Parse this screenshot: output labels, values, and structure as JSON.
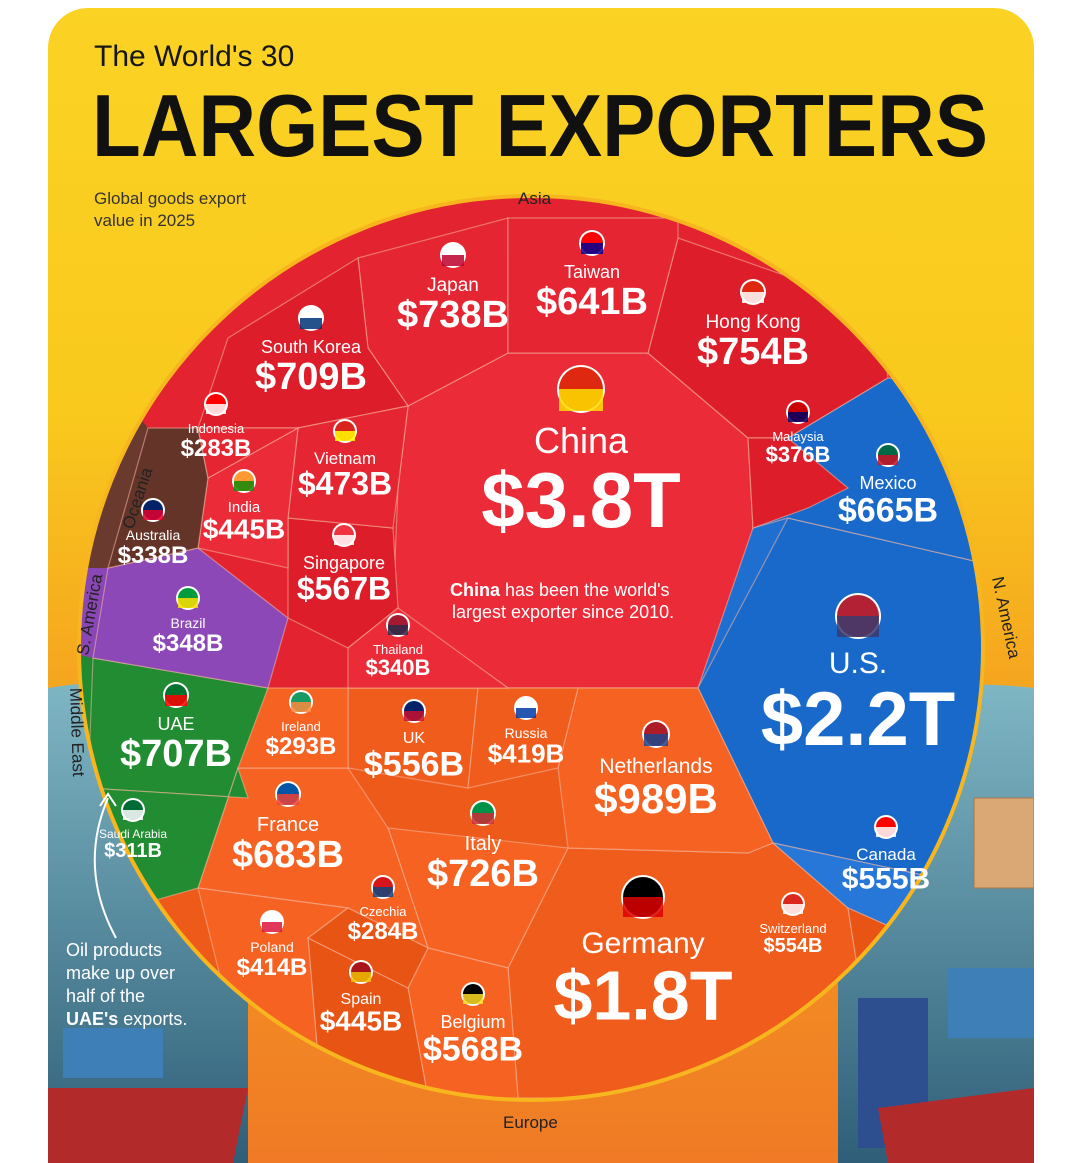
{
  "header": {
    "pretitle": "The World's 30",
    "title": "LARGEST EXPORTERS",
    "subtitle_line1": "Global goods export",
    "subtitle_line2": "value in 2025"
  },
  "regions": {
    "asia": "Asia",
    "oceania": "Oceania",
    "s_america": "S. America",
    "middle_east": "Middle East",
    "n_america": "N. America",
    "europe": "Europe"
  },
  "colors": {
    "asia": "#e3232f",
    "europe": "#ee5a1a",
    "n_america": "#1f6fd0",
    "middle_east": "#1f8a2f",
    "s_america": "#8b46b5",
    "oceania": "#6b3a2f",
    "background": "#fbd324"
  },
  "notes": {
    "china_line1_bold": "China",
    "china_line1_rest": " has been the world's",
    "china_line2": "largest exporter since 2010.",
    "uae_line1": "Oil products",
    "uae_line2": "make up over",
    "uae_line3": "half of the",
    "uae_line4_bold": "UAE's",
    "uae_line4_rest": " exports."
  },
  "chart_data": {
    "type": "voronoi-treemap",
    "title": "The World's 30 LARGEST EXPORTERS",
    "subtitle": "Global goods export value in 2025",
    "unit": "USD",
    "countries": [
      {
        "country": "China",
        "value_label": "$3.8T",
        "value": 3800,
        "region": "Asia"
      },
      {
        "country": "U.S.",
        "value_label": "$2.2T",
        "value": 2200,
        "region": "N. America"
      },
      {
        "country": "Germany",
        "value_label": "$1.8T",
        "value": 1800,
        "region": "Europe"
      },
      {
        "country": "Netherlands",
        "value_label": "$989B",
        "value": 989,
        "region": "Europe"
      },
      {
        "country": "Hong Kong",
        "value_label": "$754B",
        "value": 754,
        "region": "Asia"
      },
      {
        "country": "Japan",
        "value_label": "$738B",
        "value": 738,
        "region": "Asia"
      },
      {
        "country": "Italy",
        "value_label": "$726B",
        "value": 726,
        "region": "Europe"
      },
      {
        "country": "South Korea",
        "value_label": "$709B",
        "value": 709,
        "region": "Asia"
      },
      {
        "country": "UAE",
        "value_label": "$707B",
        "value": 707,
        "region": "Middle East"
      },
      {
        "country": "France",
        "value_label": "$683B",
        "value": 683,
        "region": "Europe"
      },
      {
        "country": "Mexico",
        "value_label": "$665B",
        "value": 665,
        "region": "N. America"
      },
      {
        "country": "Taiwan",
        "value_label": "$641B",
        "value": 641,
        "region": "Asia"
      },
      {
        "country": "Belgium",
        "value_label": "$568B",
        "value": 568,
        "region": "Europe"
      },
      {
        "country": "Singapore",
        "value_label": "$567B",
        "value": 567,
        "region": "Asia"
      },
      {
        "country": "UK",
        "value_label": "$556B",
        "value": 556,
        "region": "Europe"
      },
      {
        "country": "Canada",
        "value_label": "$555B",
        "value": 555,
        "region": "N. America"
      },
      {
        "country": "Switzerland",
        "value_label": "$554B",
        "value": 554,
        "region": "Europe"
      },
      {
        "country": "Vietnam",
        "value_label": "$473B",
        "value": 473,
        "region": "Asia"
      },
      {
        "country": "India",
        "value_label": "$445B",
        "value": 445,
        "region": "Asia"
      },
      {
        "country": "Spain",
        "value_label": "$445B",
        "value": 445,
        "region": "Europe"
      },
      {
        "country": "Russia",
        "value_label": "$419B",
        "value": 419,
        "region": "Europe"
      },
      {
        "country": "Poland",
        "value_label": "$414B",
        "value": 414,
        "region": "Europe"
      },
      {
        "country": "Malaysia",
        "value_label": "$376B",
        "value": 376,
        "region": "Asia"
      },
      {
        "country": "Brazil",
        "value_label": "$348B",
        "value": 348,
        "region": "S. America"
      },
      {
        "country": "Thailand",
        "value_label": "$340B",
        "value": 340,
        "region": "Asia"
      },
      {
        "country": "Australia",
        "value_label": "$338B",
        "value": 338,
        "region": "Oceania"
      },
      {
        "country": "Saudi Arabia",
        "value_label": "$311B",
        "value": 311,
        "region": "Middle East"
      },
      {
        "country": "Ireland",
        "value_label": "$293B",
        "value": 293,
        "region": "Europe"
      },
      {
        "country": "Czechia",
        "value_label": "$284B",
        "value": 284,
        "region": "Europe"
      },
      {
        "country": "Indonesia",
        "value_label": "$283B",
        "value": 283,
        "region": "Asia"
      }
    ]
  }
}
